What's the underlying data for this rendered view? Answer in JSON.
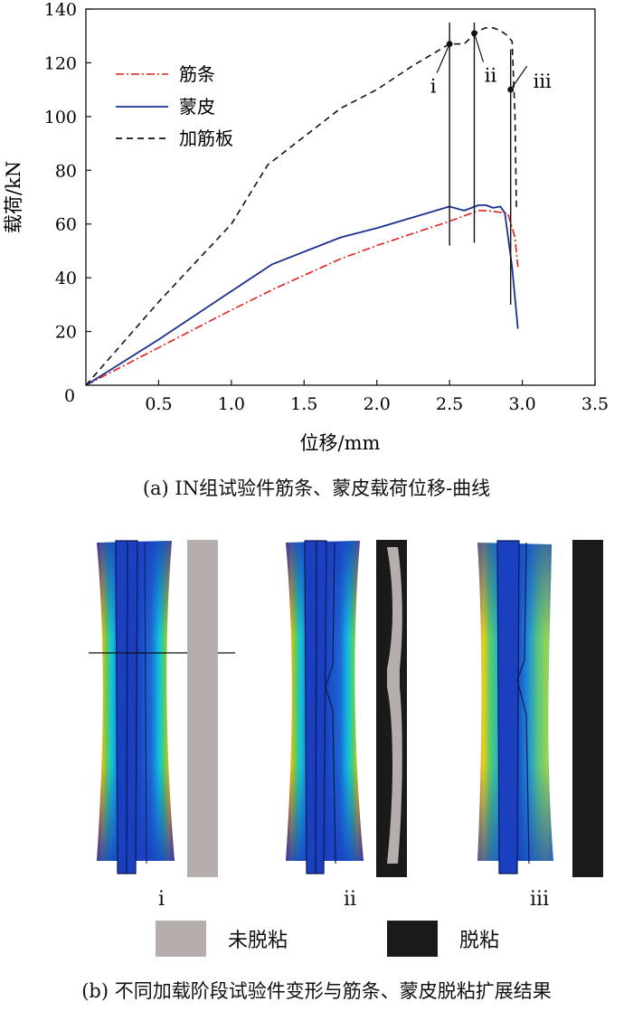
{
  "chart_data": {
    "type": "line",
    "title": "",
    "xlabel": "位移/mm",
    "ylabel": "载荷/kN",
    "xlim": [
      0,
      3.5
    ],
    "ylim": [
      0,
      140
    ],
    "xticks": [
      0.5,
      1.0,
      1.5,
      2.0,
      2.5,
      3.0,
      3.5
    ],
    "xtick_labels": [
      "0.5",
      "1.0",
      "1.5",
      "2.0",
      "2.5",
      "3.0",
      "3.5"
    ],
    "yticks": [
      20,
      40,
      60,
      80,
      100,
      120,
      140
    ],
    "ytick_labels": [
      "20",
      "40",
      "60",
      "80",
      "100",
      "120",
      "140"
    ],
    "origin_label": "0",
    "legend_position": "top-left",
    "series": [
      {
        "name": "筋条",
        "color": "#e0201b",
        "style": "dash-dot",
        "x": [
          0,
          0.5,
          1.0,
          1.3,
          1.75,
          2.0,
          2.5,
          2.6,
          2.7,
          2.75,
          2.9,
          2.95,
          2.97
        ],
        "y": [
          0,
          14,
          28,
          36,
          47,
          52,
          61,
          63,
          65,
          65,
          64,
          55,
          44
        ]
      },
      {
        "name": "蒙皮",
        "color": "#1a2f8f",
        "style": "solid",
        "x": [
          0,
          0.5,
          1.0,
          1.28,
          1.75,
          2.0,
          2.5,
          2.6,
          2.7,
          2.75,
          2.8,
          2.85,
          2.88,
          2.93,
          2.97
        ],
        "y": [
          0,
          17,
          35,
          45,
          55,
          58.5,
          66.5,
          65,
          67,
          67,
          66,
          66.5,
          64,
          44,
          21
        ]
      },
      {
        "name": "加筋板",
        "color": "#111111",
        "style": "dashed",
        "x": [
          0,
          0.5,
          1.0,
          1.25,
          1.75,
          2.0,
          2.25,
          2.5,
          2.6,
          2.7,
          2.75,
          2.8,
          2.85,
          2.9,
          2.93,
          2.95,
          2.96
        ],
        "y": [
          0,
          31,
          60,
          82,
          103,
          110,
          119,
          127,
          127,
          132,
          133,
          133,
          132,
          130,
          128,
          100,
          65
        ]
      }
    ],
    "annotations": [
      {
        "label": "i",
        "x": 2.5,
        "y": 127,
        "line_y": [
          52,
          135
        ]
      },
      {
        "label": "ii",
        "x": 2.67,
        "y": 131,
        "line_y": [
          53,
          135
        ]
      },
      {
        "label": "iii",
        "x": 2.92,
        "y": 110,
        "line_y": [
          30,
          125
        ]
      }
    ]
  },
  "caption_a": "(a) IN组试验件筋条、蒙皮载荷位移-曲线",
  "caption_b": "(b) 不同加载阶段试验件变形与筋条、蒙皮脱粘扩展结果",
  "panel_b": {
    "stage_labels": [
      "i",
      "ii",
      "iii"
    ],
    "legend": [
      {
        "label": "未脱粘",
        "color": "#b5aeac"
      },
      {
        "label": "脱粘",
        "color": "#1a1a1a"
      }
    ]
  }
}
